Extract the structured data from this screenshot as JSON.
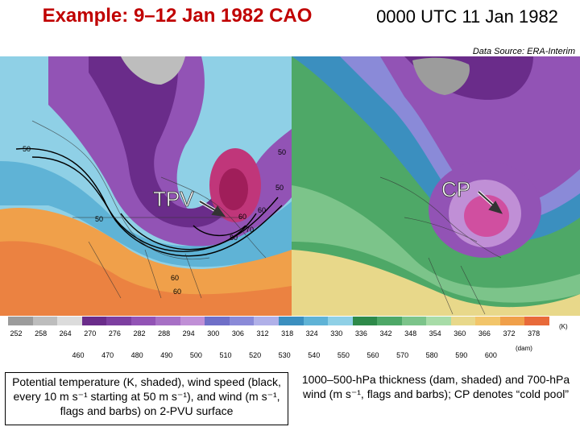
{
  "header": {
    "title_left": "Example: 9–12 Jan 1982 CAO",
    "title_right": "0000 UTC 11 Jan 1982",
    "data_source": "Data Source: ERA-Interim"
  },
  "left_panel": {
    "label": "TPV",
    "contour_labels": [
      "50",
      "50",
      "50",
      "60",
      "50",
      "60",
      "70",
      "80",
      "60",
      "60"
    ]
  },
  "right_panel": {
    "label": "CP"
  },
  "colorbar_theta": {
    "unit": "(K)",
    "ticks": [
      "252",
      "258",
      "264",
      "270",
      "276",
      "282",
      "288",
      "294",
      "300",
      "306",
      "312",
      "318",
      "324",
      "330",
      "336",
      "342",
      "348",
      "354",
      "360",
      "366",
      "372",
      "378"
    ]
  },
  "colorbar_thickness": {
    "unit": "(dam)",
    "ticks": [
      "460",
      "470",
      "480",
      "490",
      "500",
      "510",
      "520",
      "530",
      "540",
      "550",
      "560",
      "570",
      "580",
      "590",
      "600"
    ]
  },
  "colorbar_colors": [
    "#9c9c9c",
    "#bdbdbd",
    "#dcdcdc",
    "#6a2c8a",
    "#7d3fa0",
    "#9253b5",
    "#a770c5",
    "#c08fd6",
    "#6f6fc8",
    "#8a8ad8",
    "#b0b0e8",
    "#3b8fbf",
    "#5fb3d6",
    "#8fd0e6",
    "#2e8a4a",
    "#4ea867",
    "#7cc48a",
    "#a8dca8",
    "#e8d88a",
    "#f2c56a",
    "#f0a04a",
    "#e86a3a"
  ],
  "captions": {
    "left": "Potential temperature (K, shaded), wind speed (black, every 10 m s⁻¹ starting at 50 m s⁻¹), and wind (m s⁻¹, flags and barbs) on 2-PVU surface",
    "right": "1000–500-hPa thickness (dam, shaded) and 700-hPa wind (m s⁻¹, flags and barbs); CP denotes “cold pool”"
  }
}
